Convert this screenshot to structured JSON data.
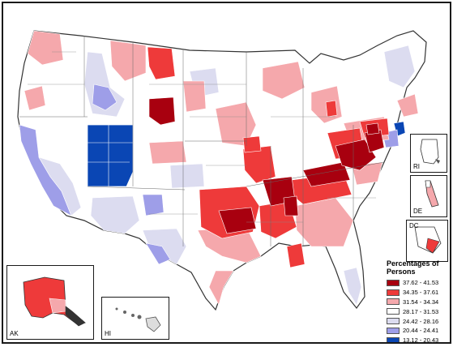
{
  "legend": {
    "title": "Percentages of Persons",
    "classes": [
      {
        "range": "37.62 - 41.53",
        "color": "#a8000f"
      },
      {
        "range": "34.35 - 37.61",
        "color": "#ee3a3a"
      },
      {
        "range": "31.54 - 34.34",
        "color": "#f5a8ac"
      },
      {
        "range": "28.17 - 31.53",
        "color": "#ffffff"
      },
      {
        "range": "24.42 - 28.16",
        "color": "#dcdcf0"
      },
      {
        "range": "20.44 - 24.41",
        "color": "#9e9ee8"
      },
      {
        "range": "13.12 - 20.43",
        "color": "#0a46b4"
      }
    ]
  },
  "insets": {
    "ak": "AK",
    "hi": "HI",
    "ri": "RI",
    "de": "DE",
    "dc": "DC"
  }
}
